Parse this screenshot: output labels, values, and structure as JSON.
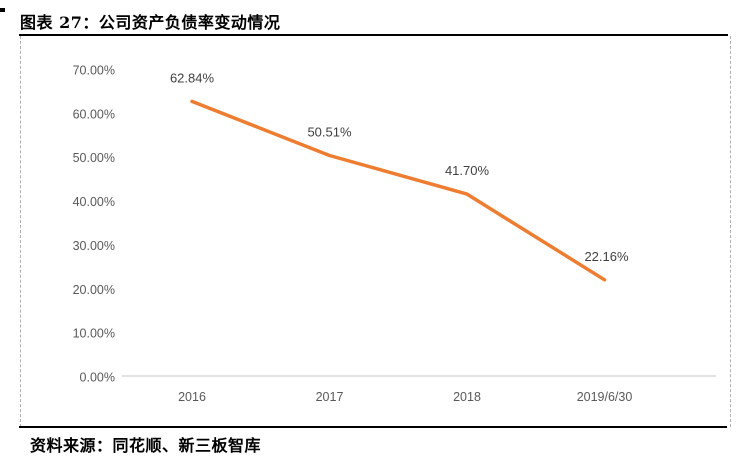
{
  "header": {
    "title": "图表 27：公司资产负债率变动情况"
  },
  "footer": {
    "source": "资料来源：同花顺、新三板智库"
  },
  "chart_data": {
    "type": "line",
    "title": "图表 27：公司资产负债率变动情况",
    "categories": [
      "2016",
      "2017",
      "2018",
      "2019/6/30"
    ],
    "values": [
      62.84,
      50.51,
      41.7,
      22.16
    ],
    "data_labels": [
      "62.84%",
      "50.51%",
      "41.70%",
      "22.16%"
    ],
    "yticks": [
      "0.00%",
      "10.00%",
      "20.00%",
      "30.00%",
      "40.00%",
      "50.00%",
      "60.00%",
      "70.00%"
    ],
    "ytick_values": [
      0,
      10,
      20,
      30,
      40,
      50,
      60,
      70
    ],
    "ylim": [
      0,
      70
    ],
    "xlabel": "",
    "ylabel": "",
    "grid": false,
    "legend": "none",
    "colors": {
      "line": "#ED7D31",
      "axis_line": "#D9D9D9",
      "tick_label": "#595959",
      "data_label": "#404040"
    }
  }
}
